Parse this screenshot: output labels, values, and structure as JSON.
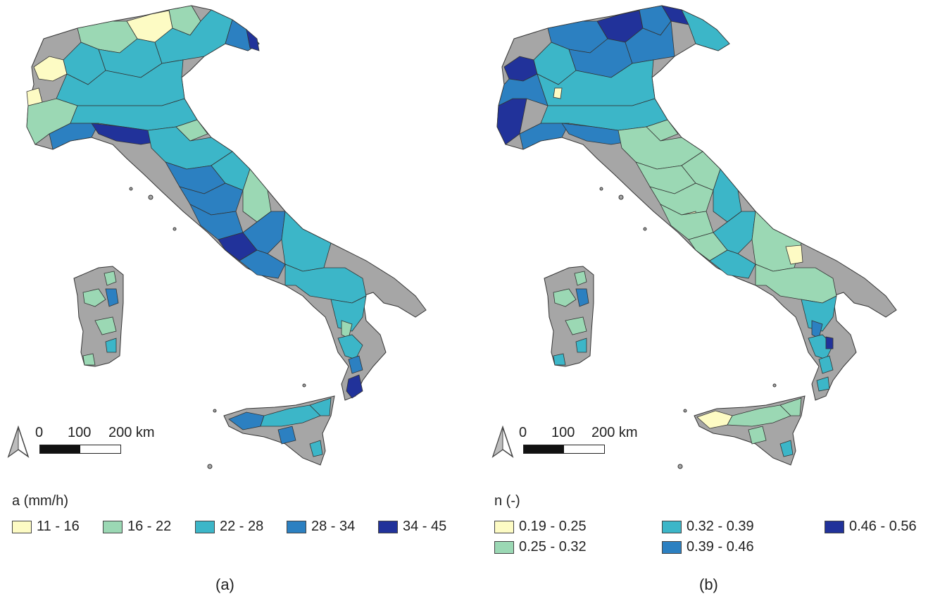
{
  "panel_a": {
    "caption": "(a)",
    "scale": {
      "tick_0": "0",
      "tick_100": "100",
      "tick_200": "200 km"
    },
    "legend": {
      "title": "a (mm/h)",
      "items": [
        {
          "label": "11 - 16",
          "color": "#fdfbc4"
        },
        {
          "label": "16 - 22",
          "color": "#9bd8b4"
        },
        {
          "label": "22 - 28",
          "color": "#3cb6c8"
        },
        {
          "label": "28 - 34",
          "color": "#2c80c1"
        },
        {
          "label": "34 - 45",
          "color": "#21329a"
        }
      ]
    }
  },
  "panel_b": {
    "caption": "(b)",
    "scale": {
      "tick_0": "0",
      "tick_100": "100",
      "tick_200": "200 km"
    },
    "legend": {
      "title": "n (-)",
      "items": [
        {
          "label": "0.19 - 0.25",
          "color": "#fdfbc4"
        },
        {
          "label": "0.25 - 0.32",
          "color": "#9bd8b4"
        },
        {
          "label": "0.32 - 0.39",
          "color": "#3cb6c8"
        },
        {
          "label": "0.39 - 0.46",
          "color": "#2c80c1"
        },
        {
          "label": "0.46 - 0.56",
          "color": "#21329a"
        }
      ]
    }
  },
  "colors": {
    "land": "#a6a6a6",
    "outline": "#333333"
  }
}
